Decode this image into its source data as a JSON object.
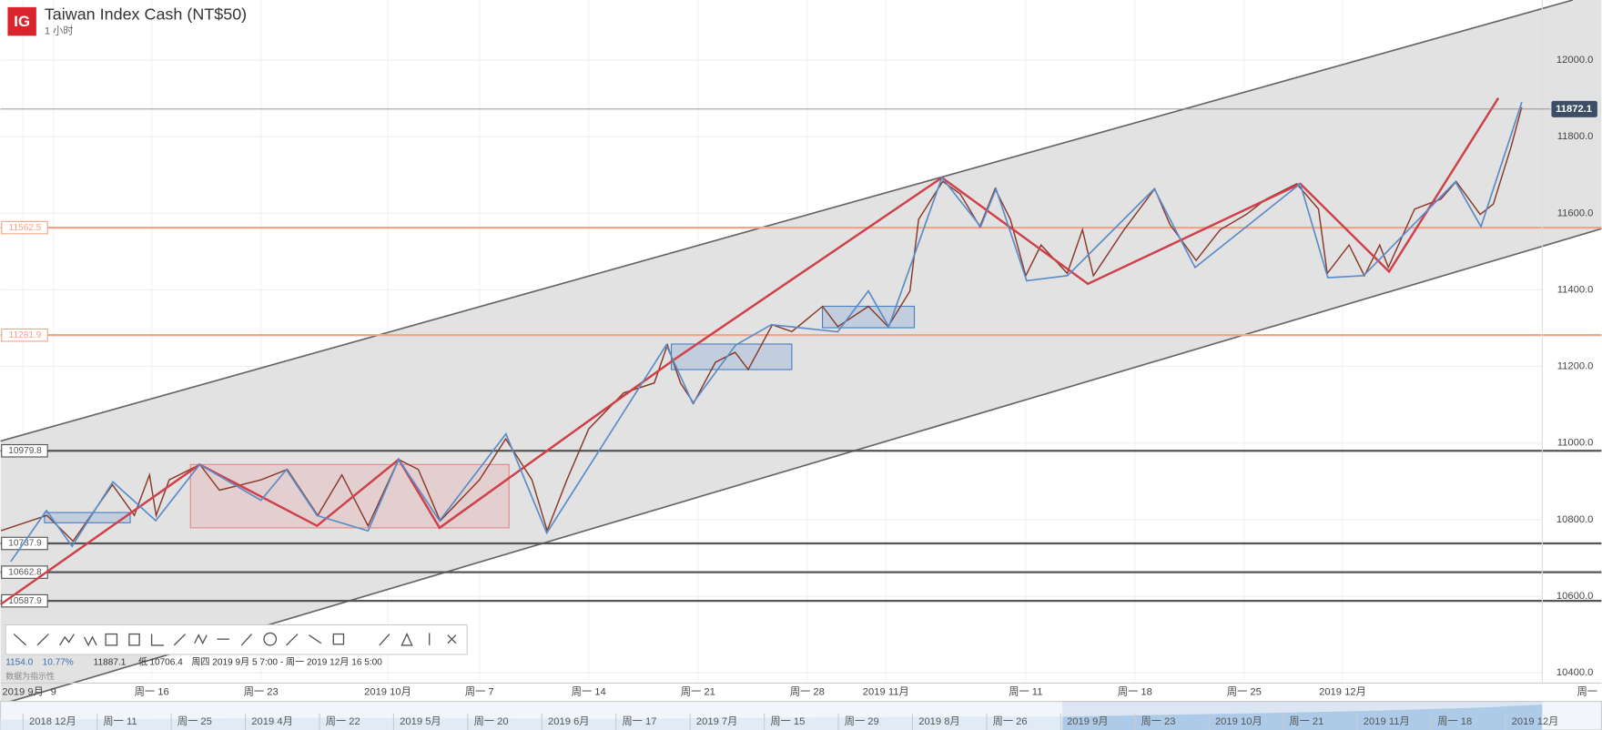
{
  "chart_data": {
    "type": "line",
    "title": "Taiwan Index Cash (NT$50)",
    "subtitle": "1 小时",
    "logo": "IG",
    "xlim": [
      3.08,
      73.64
    ],
    "ylim": [
      10376,
      12157
    ],
    "grid": true,
    "color": "#8a3a2a",
    "yticks": [
      {
        "value": 10400,
        "label": "10400.0"
      },
      {
        "value": 10600,
        "label": "10600.0"
      },
      {
        "value": 10800,
        "label": "10800.0"
      },
      {
        "value": 11000,
        "label": "11000.0"
      },
      {
        "value": 11200,
        "label": "11200.0"
      },
      {
        "value": 11400,
        "label": "11400.0"
      },
      {
        "value": 11600,
        "label": "11600.0"
      },
      {
        "value": 11800,
        "label": "11800.0"
      },
      {
        "value": 12000,
        "label": "12000.0"
      }
    ],
    "xticks": [
      {
        "value": 4.1,
        "label": "2019 9月"
      },
      {
        "value": 5.5,
        "label": "9"
      },
      {
        "value": 10,
        "label": "周一 16"
      },
      {
        "value": 15,
        "label": "周一 23"
      },
      {
        "value": 20.8,
        "label": "2019 10月"
      },
      {
        "value": 25,
        "label": "周一 7"
      },
      {
        "value": 30,
        "label": "周一 14"
      },
      {
        "value": 35,
        "label": "周一 21"
      },
      {
        "value": 40,
        "label": "周一 28"
      },
      {
        "value": 43.6,
        "label": "2019 11月"
      },
      {
        "value": 50,
        "label": "周一 11"
      },
      {
        "value": 55,
        "label": "周一 18"
      },
      {
        "value": 60,
        "label": "周一 25"
      },
      {
        "value": 64.5,
        "label": "2019 12月"
      },
      {
        "value": 75.7,
        "label": "周一"
      }
    ],
    "x": [
      3.1,
      5.2,
      6.4,
      8.2,
      9.2,
      9.9,
      10.2,
      10.8,
      12.2,
      13.1,
      15.0,
      16.2,
      17.6,
      18.7,
      19.9,
      21.3,
      22.2,
      23.2,
      25.0,
      26.2,
      27.4,
      28.1,
      29.0,
      30.0,
      31.6,
      33.0,
      33.6,
      34.2,
      34.8,
      35.8,
      36.7,
      37.3,
      38.4,
      39.3,
      40.7,
      41.4,
      42.8,
      43.7,
      44.7,
      45.1,
      46.2,
      47.0,
      47.9,
      48.6,
      49.3,
      50.0,
      50.7,
      51.9,
      52.6,
      53.1,
      54.5,
      55.9,
      56.6,
      57.8,
      58.9,
      60.1,
      61.0,
      62.4,
      63.4,
      63.8,
      64.8,
      65.5,
      66.2,
      66.6,
      67.8,
      69.0,
      69.7,
      70.8,
      71.4,
      72.2,
      72.7
    ],
    "values": [
      10771,
      10811,
      10744,
      10891,
      10811,
      10917,
      10811,
      10904,
      10944,
      10877,
      10904,
      10931,
      10811,
      10917,
      10784,
      10957,
      10931,
      10797,
      10904,
      11011,
      10904,
      10771,
      10904,
      11037,
      11131,
      11157,
      11256,
      11157,
      11104,
      11211,
      11237,
      11192,
      11309,
      11291,
      11357,
      11304,
      11357,
      11304,
      11397,
      11584,
      11683,
      11651,
      11565,
      11664,
      11584,
      11437,
      11517,
      11443,
      11557,
      11437,
      11557,
      11664,
      11571,
      11477,
      11557,
      11597,
      11637,
      11677,
      11611,
      11443,
      11517,
      11437,
      11517,
      11459,
      11611,
      11637,
      11683,
      11597,
      11624,
      11771,
      11877
    ],
    "levels": [
      {
        "value": 11562.5,
        "color": "#f0a58a"
      },
      {
        "value": 11281.9,
        "color": "#f0a58a"
      },
      {
        "value": 10979.8,
        "color": "#555555"
      },
      {
        "value": 10737.9,
        "color": "#555555"
      },
      {
        "value": 10662.8,
        "color": "#555555"
      },
      {
        "value": 10587.9,
        "color": "#555555"
      }
    ],
    "last": 11872.1,
    "last_color": "#3d4f66",
    "info": {
      "change": "1154.0",
      "change_pct": "10.77%",
      "high": "11887.1",
      "low_label": "低",
      "low": "10706.4",
      "range": "周四 2019 9月 5 7:00 - 周一 2019 12月 16 5:00",
      "note": "数据为指示性"
    },
    "navigator": [
      "2018 12月",
      "周一 11",
      "周一 25",
      "2019 4月",
      "周一 22",
      "2019 5月",
      "周一 20",
      "2019 6月",
      "周一 17",
      "2019 7月",
      "周一 15",
      "周一 29",
      "2019 8月",
      "周一 26",
      "2019 9月",
      "周一 23",
      "2019 10月",
      "周一 21",
      "2019 11月",
      "周一 18",
      "2019 12月"
    ]
  }
}
